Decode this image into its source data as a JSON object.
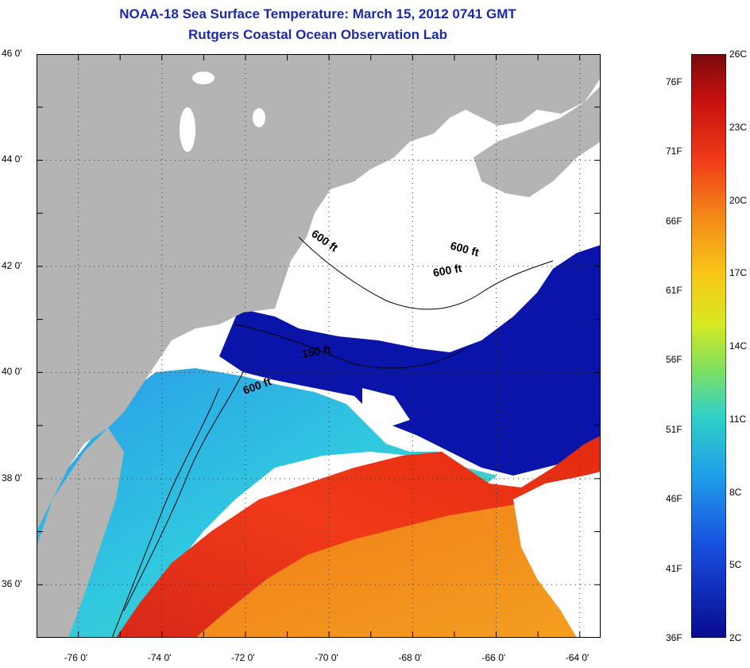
{
  "header": {
    "title": "NOAA-18 Sea Surface Temperature:  March 15, 2012 0741 GMT",
    "subtitle": "Rutgers Coastal Ocean Observation Lab"
  },
  "map": {
    "lat_labels": [
      "46 0'",
      "44 0'",
      "42 0'",
      "40 0'",
      "38 0'",
      "36 0'"
    ],
    "lon_labels": [
      "-76 0'",
      "-74 0'",
      "-72 0'",
      "-70 0'",
      "-68 0'",
      "-66 0'",
      "-64 0'"
    ],
    "lat_range": [
      35,
      46
    ],
    "lon_range": [
      -77,
      -63.5
    ],
    "contour_labels": [
      "600 ft",
      "600 ft",
      "600 ft",
      "150 ft",
      "600 ft"
    ],
    "colors": {
      "land": "#b4b4b4",
      "cloud": "#ffffff",
      "cold": "#0a14a8",
      "warm": "#e83018",
      "border": "#000000"
    }
  },
  "colorbar": {
    "celsius_labels": [
      "26C",
      "23C",
      "20C",
      "17C",
      "14C",
      "11C",
      "8C",
      "5C",
      "2C"
    ],
    "fahrenheit_labels": [
      "76F",
      "71F",
      "66F",
      "61F",
      "56F",
      "51F",
      "46F",
      "41F",
      "36F"
    ],
    "range_c": [
      2,
      26
    ],
    "range_f": [
      36,
      78
    ]
  }
}
